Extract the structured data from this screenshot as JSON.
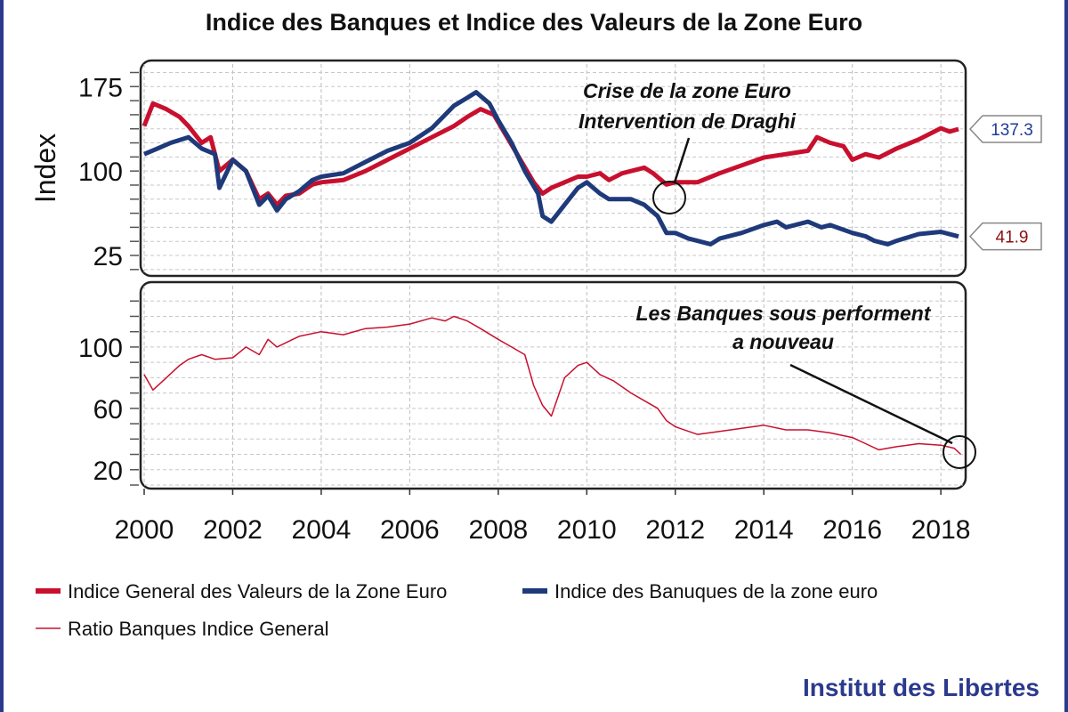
{
  "title": "Indice des Banques et Indice des Valeurs de la Zone Euro",
  "brand": "Institut des Libertes",
  "colors": {
    "general": "#c8102e",
    "banks": "#1f3a7a",
    "ratio": "#c8102e",
    "brand": "#2b3a8c"
  },
  "chart_data": [
    {
      "type": "line",
      "ylabel": "Index",
      "ylim": [
        10,
        195
      ],
      "yticks": [
        25,
        100,
        175
      ],
      "xlim": [
        2000,
        2018.5
      ],
      "xticks": [
        2000,
        2002,
        2004,
        2006,
        2008,
        2010,
        2012,
        2014,
        2016,
        2018
      ],
      "grid": true,
      "series": [
        {
          "name": "Indice General des Valeurs de la Zone Euro",
          "end_label": "137.3",
          "x": [
            2000.0,
            2000.2,
            2000.5,
            2000.8,
            2001.0,
            2001.3,
            2001.5,
            2001.7,
            2002.0,
            2002.3,
            2002.6,
            2002.8,
            2003.0,
            2003.2,
            2003.5,
            2003.8,
            2004.0,
            2004.5,
            2005.0,
            2005.5,
            2006.0,
            2006.5,
            2007.0,
            2007.3,
            2007.6,
            2007.9,
            2008.2,
            2008.5,
            2008.8,
            2009.0,
            2009.2,
            2009.5,
            2009.8,
            2010.0,
            2010.3,
            2010.5,
            2010.8,
            2011.0,
            2011.3,
            2011.5,
            2011.8,
            2012.0,
            2012.5,
            2013.0,
            2013.5,
            2014.0,
            2014.5,
            2015.0,
            2015.2,
            2015.5,
            2015.8,
            2016.0,
            2016.3,
            2016.6,
            2017.0,
            2017.5,
            2018.0,
            2018.2,
            2018.4
          ],
          "y": [
            140,
            160,
            155,
            148,
            140,
            125,
            130,
            100,
            110,
            100,
            75,
            80,
            70,
            78,
            80,
            88,
            90,
            92,
            100,
            110,
            120,
            130,
            140,
            148,
            155,
            150,
            130,
            110,
            90,
            80,
            85,
            90,
            95,
            95,
            98,
            92,
            98,
            100,
            103,
            98,
            88,
            90,
            90,
            98,
            105,
            112,
            115,
            118,
            130,
            125,
            122,
            110,
            115,
            112,
            120,
            128,
            138,
            135,
            137.3
          ]
        },
        {
          "name": "Indice des Banuques de la zone euro",
          "end_label": "41.9",
          "x": [
            2000.0,
            2000.3,
            2000.6,
            2001.0,
            2001.3,
            2001.6,
            2001.7,
            2002.0,
            2002.3,
            2002.6,
            2002.8,
            2003.0,
            2003.2,
            2003.5,
            2003.8,
            2004.0,
            2004.5,
            2005.0,
            2005.5,
            2006.0,
            2006.5,
            2006.8,
            2007.0,
            2007.3,
            2007.5,
            2007.8,
            2008.0,
            2008.3,
            2008.6,
            2008.9,
            2009.0,
            2009.2,
            2009.5,
            2009.8,
            2010.0,
            2010.3,
            2010.5,
            2011.0,
            2011.3,
            2011.6,
            2011.8,
            2012.0,
            2012.3,
            2012.5,
            2012.8,
            2013.0,
            2013.5,
            2014.0,
            2014.3,
            2014.5,
            2015.0,
            2015.3,
            2015.5,
            2016.0,
            2016.3,
            2016.5,
            2016.8,
            2017.0,
            2017.5,
            2018.0,
            2018.4
          ],
          "y": [
            115,
            120,
            125,
            130,
            120,
            115,
            85,
            110,
            100,
            70,
            78,
            65,
            75,
            82,
            92,
            95,
            98,
            108,
            118,
            125,
            138,
            150,
            158,
            165,
            170,
            160,
            145,
            125,
            100,
            80,
            60,
            55,
            70,
            85,
            90,
            80,
            75,
            75,
            70,
            60,
            45,
            45,
            40,
            38,
            35,
            40,
            45,
            52,
            55,
            50,
            55,
            50,
            52,
            45,
            42,
            38,
            35,
            38,
            44,
            46,
            41.9
          ]
        }
      ]
    },
    {
      "type": "line",
      "ylim": [
        10,
        140
      ],
      "yticks": [
        20,
        60,
        100
      ],
      "xlim": [
        2000,
        2018.5
      ],
      "xticks": [
        2000,
        2002,
        2004,
        2006,
        2008,
        2010,
        2012,
        2014,
        2016,
        2018
      ],
      "xticklabels": [
        "2000",
        "2002",
        "2004",
        "2006",
        "2008",
        "2010",
        "2012",
        "2014",
        "2016",
        "2018"
      ],
      "grid": true,
      "series": [
        {
          "name": "Ratio Banques Indice General",
          "x": [
            2000.0,
            2000.2,
            2000.5,
            2000.8,
            2001.0,
            2001.3,
            2001.6,
            2002.0,
            2002.3,
            2002.6,
            2002.8,
            2003.0,
            2003.5,
            2004.0,
            2004.5,
            2005.0,
            2005.5,
            2006.0,
            2006.5,
            2006.8,
            2007.0,
            2007.3,
            2007.6,
            2008.0,
            2008.3,
            2008.6,
            2008.8,
            2009.0,
            2009.2,
            2009.5,
            2009.8,
            2010.0,
            2010.3,
            2010.6,
            2011.0,
            2011.3,
            2011.6,
            2011.8,
            2012.0,
            2012.5,
            2013.0,
            2013.5,
            2014.0,
            2014.5,
            2015.0,
            2015.5,
            2016.0,
            2016.3,
            2016.6,
            2017.0,
            2017.5,
            2018.0,
            2018.3,
            2018.45
          ],
          "y": [
            82,
            72,
            80,
            88,
            92,
            95,
            92,
            93,
            100,
            95,
            105,
            100,
            107,
            110,
            108,
            112,
            113,
            115,
            119,
            117,
            120,
            117,
            112,
            105,
            100,
            95,
            75,
            62,
            55,
            80,
            88,
            90,
            82,
            78,
            70,
            65,
            60,
            52,
            48,
            43,
            45,
            47,
            49,
            46,
            46,
            44,
            41,
            37,
            33,
            35,
            37,
            36,
            34,
            30
          ]
        }
      ]
    }
  ],
  "annotations": {
    "top_line1": "Crise de la zone Euro",
    "top_line2": "Intervention de Draghi",
    "bottom_line1": "Les Banques sous performent",
    "bottom_line2": "a nouveau"
  }
}
